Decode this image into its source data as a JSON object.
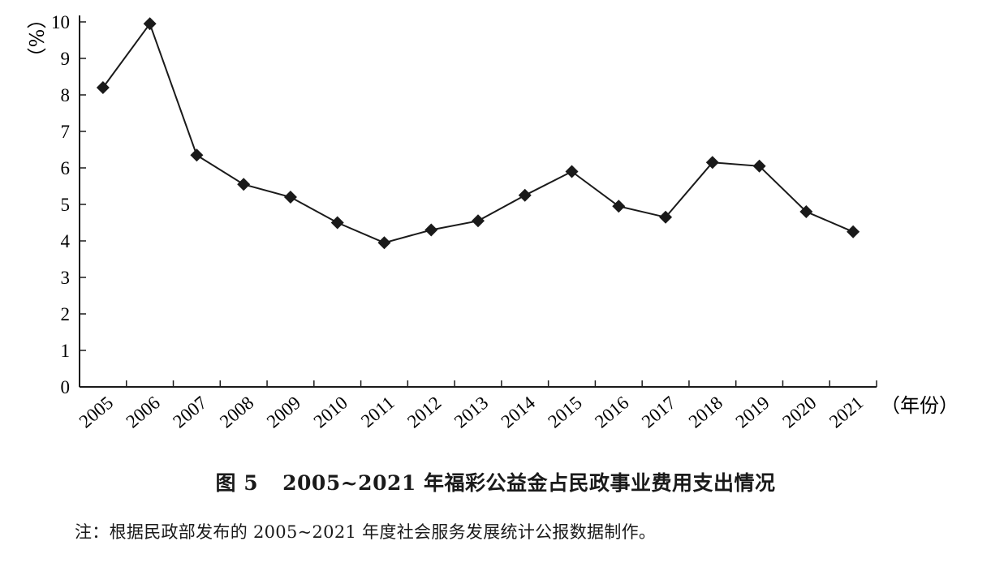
{
  "figure": {
    "number": "图 5",
    "title": "2005~2021 年福彩公益金占民政事业费用支出情况",
    "note": "注：根据民政部发布的 2005~2021 年度社会服务发展统计公报数据制作。"
  },
  "chart_data": {
    "type": "line",
    "title": "2005~2021 年福彩公益金占民政事业费用支出情况",
    "xlabel": "（年份）",
    "ylabel": "（%）",
    "categories": [
      "2005",
      "2006",
      "2007",
      "2008",
      "2009",
      "2010",
      "2011",
      "2012",
      "2013",
      "2014",
      "2015",
      "2016",
      "2017",
      "2018",
      "2019",
      "2020",
      "2021"
    ],
    "series": [
      {
        "values": [
          8.2,
          9.95,
          6.35,
          5.55,
          5.2,
          4.5,
          3.95,
          4.3,
          4.55,
          5.25,
          5.9,
          4.95,
          4.65,
          6.15,
          6.05,
          4.8,
          4.25
        ],
        "marker": "diamond",
        "color": "#1a1a1a"
      }
    ],
    "yticks": [
      "0",
      "1",
      "2",
      "3",
      "4",
      "5",
      "6",
      "7",
      "8",
      "9",
      "10"
    ],
    "ylim": [
      0,
      10
    ],
    "grid": false,
    "legend": "none"
  }
}
